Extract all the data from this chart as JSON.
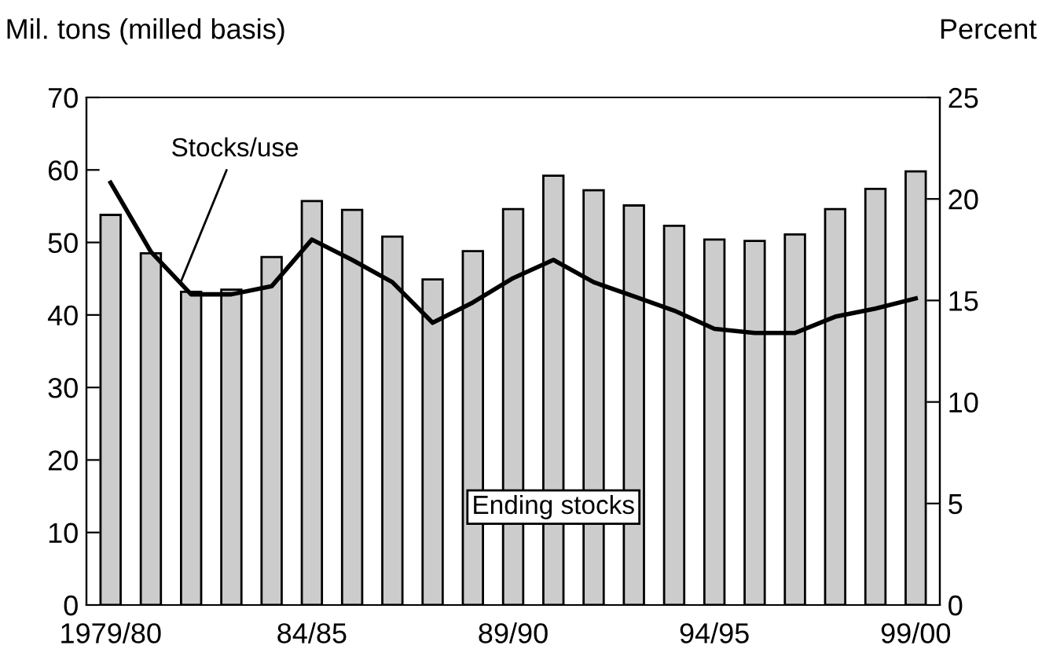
{
  "chart_data": {
    "type": "bar",
    "ylabel": "Mil. tons (milled basis)",
    "y2label": "Percent",
    "categories": [
      "1979/80",
      null,
      null,
      null,
      null,
      "84/85",
      null,
      null,
      null,
      null,
      "89/90",
      null,
      null,
      null,
      null,
      "94/95",
      null,
      null,
      null,
      null,
      "99/00"
    ],
    "series": [
      {
        "name": "Ending stocks",
        "color": "#cccccc",
        "values": [
          53.8,
          48.5,
          43.2,
          43.5,
          48,
          55.7,
          54.5,
          50.8,
          44.9,
          48.8,
          54.6,
          59.2,
          57.2,
          55.1,
          52.3,
          50.4,
          50.2,
          51.1,
          54.6,
          57.4,
          59.8
        ]
      },
      {
        "name": "Stocks/use",
        "type": "line",
        "axis": "y2",
        "color": "#000000",
        "values": [
          20.8,
          17.4,
          15.3,
          15.3,
          15.7,
          18.0,
          17.0,
          15.9,
          13.9,
          14.9,
          16.1,
          17.0,
          15.9,
          15.2,
          14.5,
          13.6,
          13.4,
          13.4,
          14.2,
          14.6,
          15.1
        ]
      }
    ],
    "ylim": [
      0,
      70
    ],
    "yticks": [
      0,
      10,
      20,
      30,
      40,
      50,
      60,
      70
    ],
    "y2lim": [
      0,
      25
    ],
    "y2ticks": [
      0,
      5,
      10,
      15,
      20,
      25
    ],
    "grid": false,
    "legend": false,
    "marker": "none",
    "line_style": "solid"
  }
}
